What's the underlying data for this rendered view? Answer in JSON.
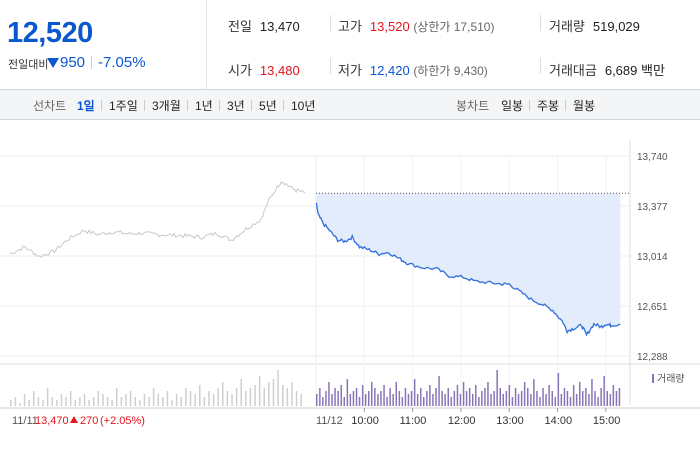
{
  "price": {
    "current": "12,520",
    "change_label": "전일대비",
    "change_amount": "950",
    "change_percent": "-7.05%"
  },
  "stats": {
    "prev_close_label": "전일",
    "prev_close": "13,470",
    "high_label": "고가",
    "high": "13,520",
    "upper_limit": "(상한가 17,510)",
    "volume_label": "거래량",
    "volume": "519,029",
    "open_label": "시가",
    "open": "13,480",
    "low_label": "저가",
    "low": "12,420",
    "lower_limit": "(하한가 9,430)",
    "amount_label": "거래대금",
    "amount": "6,689 백만"
  },
  "toolbar": {
    "line_label": "선차트",
    "line_periods": [
      "1일",
      "1주일",
      "3개월",
      "1년",
      "3년",
      "5년",
      "10년"
    ],
    "active_period": "1일",
    "candle_label": "봉차트",
    "candle_periods": [
      "일봉",
      "주봉",
      "월봉"
    ]
  },
  "chart_data": {
    "type": "line",
    "y_ticks": [
      "13,740",
      "13,377",
      "13,014",
      "12,651",
      "12,288"
    ],
    "ylim": [
      12288,
      13740
    ],
    "prev_close_line": 13470,
    "prev_day": {
      "date_label": "11/11",
      "close": "13,470",
      "change": "270",
      "change_pct": "(+2.05%)",
      "points": [
        [
          0,
          13030
        ],
        [
          0.05,
          13080
        ],
        [
          0.1,
          13010
        ],
        [
          0.15,
          13050
        ],
        [
          0.2,
          13140
        ],
        [
          0.25,
          13200
        ],
        [
          0.3,
          13170
        ],
        [
          0.35,
          13190
        ],
        [
          0.4,
          13175
        ],
        [
          0.45,
          13180
        ],
        [
          0.5,
          13170
        ],
        [
          0.55,
          13165
        ],
        [
          0.6,
          13160
        ],
        [
          0.65,
          13150
        ],
        [
          0.7,
          13180
        ],
        [
          0.75,
          13130
        ],
        [
          0.8,
          13210
        ],
        [
          0.85,
          13280
        ],
        [
          0.88,
          13430
        ],
        [
          0.92,
          13560
        ],
        [
          0.96,
          13500
        ],
        [
          1.0,
          13470
        ]
      ]
    },
    "today": {
      "date_label": "11/12",
      "x_ticks": [
        "10:00",
        "11:00",
        "12:00",
        "13:00",
        "14:00",
        "15:00"
      ],
      "points": [
        [
          9.0,
          13400
        ],
        [
          9.05,
          13310
        ],
        [
          9.15,
          13250
        ],
        [
          9.3,
          13190
        ],
        [
          9.45,
          13130
        ],
        [
          9.6,
          13120
        ],
        [
          9.75,
          13150
        ],
        [
          9.9,
          13080
        ],
        [
          10.1,
          13060
        ],
        [
          10.3,
          13030
        ],
        [
          10.5,
          13040
        ],
        [
          10.75,
          12990
        ],
        [
          10.9,
          12960
        ],
        [
          11.2,
          12930
        ],
        [
          11.5,
          12920
        ],
        [
          11.75,
          12870
        ],
        [
          12.05,
          12860
        ],
        [
          12.3,
          12830
        ],
        [
          12.6,
          12820
        ],
        [
          12.85,
          12810
        ],
        [
          13.0,
          12810
        ],
        [
          13.2,
          12760
        ],
        [
          13.45,
          12700
        ],
        [
          13.7,
          12660
        ],
        [
          13.9,
          12620
        ],
        [
          14.1,
          12540
        ],
        [
          14.2,
          12470
        ],
        [
          14.35,
          12490
        ],
        [
          14.5,
          12510
        ],
        [
          14.6,
          12440
        ],
        [
          14.75,
          12520
        ],
        [
          14.9,
          12500
        ],
        [
          15.0,
          12520
        ],
        [
          15.1,
          12510
        ],
        [
          15.3,
          12520
        ]
      ]
    },
    "volume_label": "거래량",
    "volume": {
      "prev": [
        2,
        3,
        1,
        4,
        2,
        5,
        3,
        2,
        6,
        3,
        2,
        4,
        3,
        5,
        2,
        3,
        4,
        2,
        3,
        5,
        4,
        3,
        2,
        6,
        3,
        4,
        5,
        3,
        2,
        4,
        3,
        6,
        4,
        3,
        5,
        2,
        4,
        3,
        6,
        5,
        4,
        7,
        3,
        5,
        4,
        6,
        8,
        5,
        4,
        6,
        9,
        5,
        6,
        7,
        10,
        6,
        8,
        9,
        12,
        7,
        6,
        8,
        5,
        4
      ],
      "today": [
        4,
        6,
        3,
        5,
        8,
        4,
        6,
        5,
        7,
        3,
        9,
        4,
        5,
        6,
        3,
        7,
        4,
        5,
        8,
        6,
        4,
        5,
        7,
        3,
        6,
        4,
        8,
        5,
        3,
        6,
        4,
        5,
        9,
        4,
        6,
        3,
        5,
        7,
        4,
        6,
        10,
        5,
        4,
        6,
        3,
        5,
        7,
        4,
        8,
        5,
        6,
        4,
        7,
        3,
        5,
        6,
        8,
        4,
        5,
        12,
        6,
        4,
        5,
        7,
        3,
        6,
        4,
        5,
        8,
        6,
        4,
        9,
        5,
        3,
        6,
        4,
        7,
        5,
        3,
        11,
        4,
        6,
        5,
        3,
        7,
        4,
        8,
        5,
        6,
        4,
        9,
        5,
        3,
        6,
        10,
        5,
        4,
        7,
        5,
        6
      ]
    },
    "colors": {
      "prev_line": "#c8c8c8",
      "today_line": "#2f6fdc",
      "today_fill": "#e3ecfa",
      "up": "#e3141b",
      "volume_prev": "#cfcfcf",
      "volume_today": "#8a74b8"
    }
  }
}
